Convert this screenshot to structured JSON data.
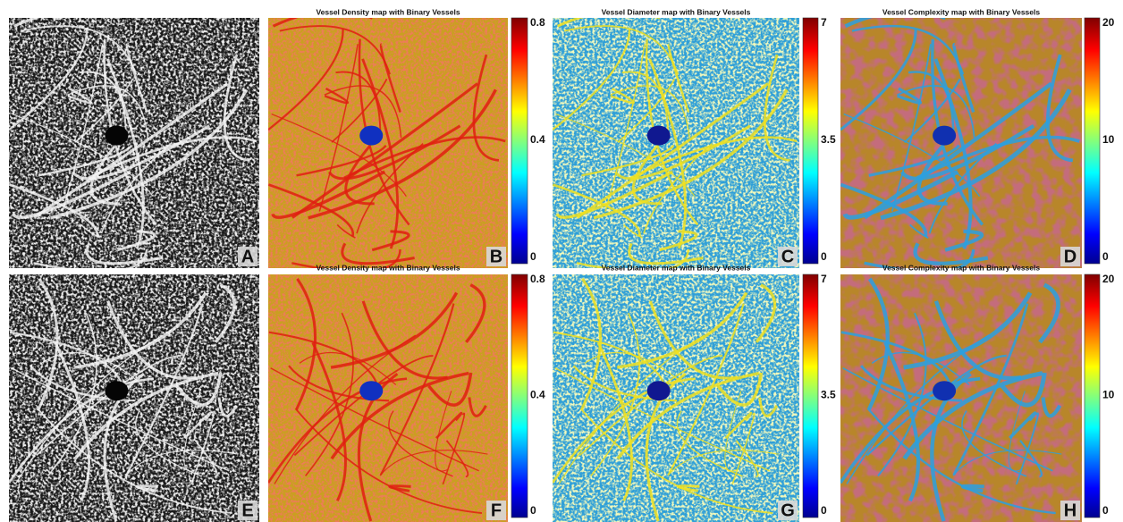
{
  "rows": [
    [
      {
        "label": "A"
      },
      {
        "title": "Vessel Density map with Binary Vessels",
        "label": "B",
        "colorbar": [
          0.8,
          0.4,
          0
        ]
      },
      {
        "title": "Vessel Diameter map with Binary Vessels",
        "label": "C",
        "colorbar": [
          7,
          3.5,
          0
        ]
      },
      {
        "title": "Vessel Complexity map with Binary Vessels",
        "label": "D",
        "colorbar": [
          20,
          10,
          0
        ]
      }
    ],
    [
      {
        "label": "E"
      },
      {
        "title": "Vessel Density map with Binary Vessels",
        "label": "F",
        "colorbar": [
          0.8,
          0.4,
          0
        ]
      },
      {
        "title": "Vessel Diameter map with Binary Vessels",
        "label": "G",
        "colorbar": [
          7,
          3.5,
          0
        ]
      },
      {
        "title": "Vessel Complexity map with Binary Vessels",
        "label": "H",
        "colorbar": [
          20,
          10,
          0
        ]
      }
    ]
  ]
}
